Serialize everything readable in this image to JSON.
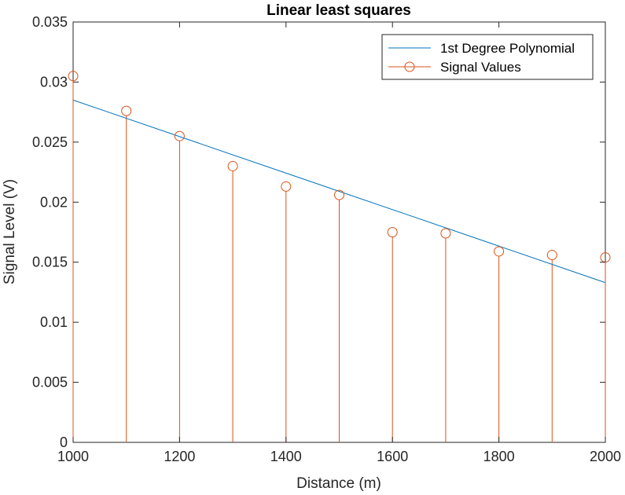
{
  "chart_data": {
    "type": "line",
    "title": "Linear least squares",
    "xlabel": "Distance (m)",
    "ylabel": "Signal Level (V)",
    "xlim": [
      1000,
      2000
    ],
    "ylim": [
      0,
      0.035
    ],
    "x_ticks": [
      1000,
      1200,
      1400,
      1600,
      1800,
      2000
    ],
    "y_ticks": [
      0,
      0.005,
      0.01,
      0.015,
      0.02,
      0.025,
      0.03,
      0.035
    ],
    "x_tick_labels": [
      "1000",
      "1200",
      "1400",
      "1600",
      "1800",
      "2000"
    ],
    "y_tick_labels": [
      "0",
      "0.005",
      "0.01",
      "0.015",
      "0.02",
      "0.025",
      "0.03",
      "0.035"
    ],
    "grid": false,
    "legend_position": "top-right",
    "series": [
      {
        "name": "1st Degree Polynomial",
        "kind": "line",
        "color": "#0072BD",
        "x": [
          1000,
          2000
        ],
        "y": [
          0.0285,
          0.0133
        ]
      },
      {
        "name": "Signal Values",
        "kind": "stem",
        "color": "#D95319",
        "x": [
          1000,
          1100,
          1200,
          1300,
          1400,
          1500,
          1600,
          1700,
          1800,
          1900,
          2000
        ],
        "y": [
          0.0305,
          0.0276,
          0.0255,
          0.023,
          0.0213,
          0.0206,
          0.0175,
          0.0174,
          0.0159,
          0.0156,
          0.0154
        ]
      }
    ]
  }
}
